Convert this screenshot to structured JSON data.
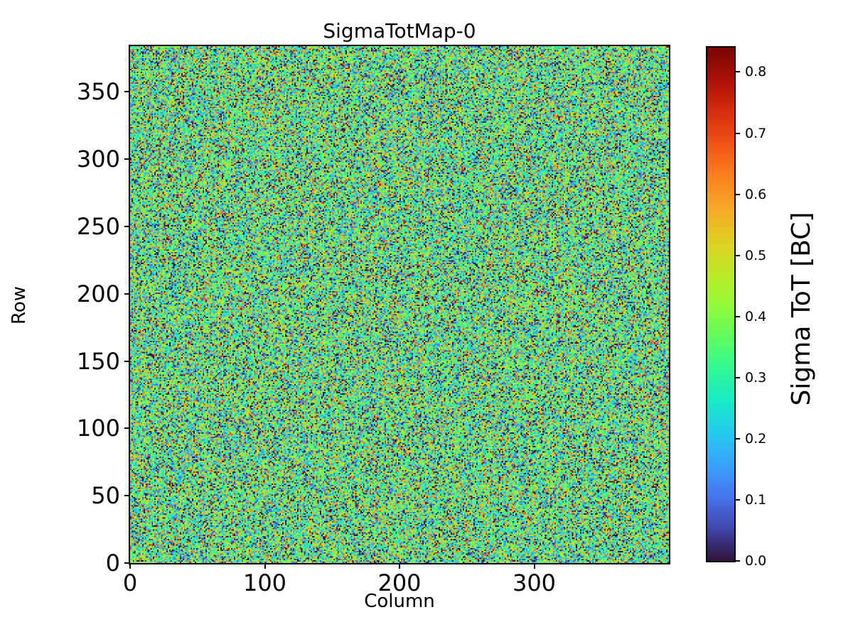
{
  "figure": {
    "background": "#ffffff",
    "text_color": "#000000",
    "frame_color": "#000000"
  },
  "chart_data": {
    "type": "heatmap",
    "title": "SigmaTotMap-0",
    "xlabel": "Column",
    "ylabel": "Row",
    "x_range": [
      0,
      400
    ],
    "y_range": [
      0,
      384
    ],
    "x_ticks": [
      0,
      100,
      200,
      300
    ],
    "y_ticks": [
      0,
      50,
      100,
      150,
      200,
      250,
      300,
      350
    ],
    "grid": false,
    "legend": "none",
    "colorbar": {
      "label": "Sigma ToT [BC]",
      "vmin": 0.0,
      "vmax": 0.84,
      "ticks": [
        0.0,
        0.1,
        0.2,
        0.3,
        0.4,
        0.5,
        0.6,
        0.7,
        0.8
      ],
      "tick_decimals": 1,
      "side": "right"
    },
    "colormap": {
      "name": "turbo",
      "stops": [
        {
          "t": 0.0,
          "rgb": [
            48,
            18,
            59
          ]
        },
        {
          "t": 0.0625,
          "rgb": [
            65,
            69,
            171
          ]
        },
        {
          "t": 0.125,
          "rgb": [
            70,
            117,
            237
          ]
        },
        {
          "t": 0.1875,
          "rgb": [
            57,
            162,
            252
          ]
        },
        {
          "t": 0.25,
          "rgb": [
            38,
            204,
            238
          ]
        },
        {
          "t": 0.3125,
          "rgb": [
            24,
            235,
            198
          ]
        },
        {
          "t": 0.375,
          "rgb": [
            49,
            248,
            148
          ]
        },
        {
          "t": 0.4375,
          "rgb": [
            98,
            252,
            94
          ]
        },
        {
          "t": 0.5,
          "rgb": [
            149,
            250,
            59
          ]
        },
        {
          "t": 0.5625,
          "rgb": [
            189,
            233,
            38
          ]
        },
        {
          "t": 0.625,
          "rgb": [
            225,
            206,
            36
          ]
        },
        {
          "t": 0.6875,
          "rgb": [
            248,
            169,
            40
          ]
        },
        {
          "t": 0.75,
          "rgb": [
            253,
            128,
            31
          ]
        },
        {
          "t": 0.8125,
          "rgb": [
            239,
            84,
            24
          ]
        },
        {
          "t": 0.875,
          "rgb": [
            214,
            46,
            15
          ]
        },
        {
          "t": 0.9375,
          "rgb": [
            171,
            17,
            6
          ]
        },
        {
          "t": 1.0,
          "rgb": [
            122,
            4,
            3
          ]
        }
      ]
    },
    "data_description": {
      "content": "per-pixel sigma-ToT random noise map, no visible spatial structure",
      "cols": 400,
      "rows": 384,
      "distribution": "gaussian",
      "mean": 0.33,
      "std": 0.19,
      "zero_fraction": 0.03,
      "clip": [
        0.0,
        0.84
      ],
      "seed": 20230517
    }
  }
}
